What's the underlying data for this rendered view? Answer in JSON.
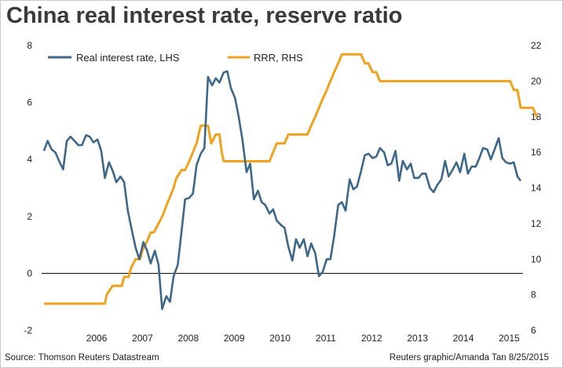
{
  "header": {
    "title": "China real interest rate, reserve ratio"
  },
  "footer": {
    "source": "Source: Thomson Reuters Datastream",
    "credit": "Reuters graphic/Amanda Tan 8/25/2015"
  },
  "colors": {
    "lhs_series": "#3d6889",
    "rhs_series": "#f0a21c",
    "zero_line": "#000000"
  },
  "chart_data": {
    "type": "line",
    "title": "China real interest rate, reserve ratio",
    "xlabel": "",
    "ylabel": "",
    "y_left": {
      "range": [
        -2,
        8
      ],
      "ticks": [
        "-2",
        "0",
        "2",
        "4",
        "6",
        "8"
      ]
    },
    "y_right": {
      "range": [
        6,
        22
      ],
      "ticks": [
        "6",
        "8",
        "10",
        "12",
        "14",
        "16",
        "18",
        "20",
        "22"
      ]
    },
    "x_range": [
      2005.0,
      2015.5
    ],
    "x_ticks": [
      {
        "label": "2006",
        "x": 2006.2
      },
      {
        "label": "2007",
        "x": 2007.2
      },
      {
        "label": "2008",
        "x": 2008.2
      },
      {
        "label": "2009",
        "x": 2009.2
      },
      {
        "label": "2010",
        "x": 2010.2
      },
      {
        "label": "2011",
        "x": 2011.2
      },
      {
        "label": "2012",
        "x": 2012.2
      },
      {
        "label": "2013",
        "x": 2013.2
      },
      {
        "label": "2014",
        "x": 2014.2
      },
      {
        "label": "2015",
        "x": 2015.2
      }
    ],
    "grid": false,
    "legend": "top",
    "series": [
      {
        "name": "Real interest rate, LHS",
        "axis": "left",
        "points": [
          [
            2005.05,
            4.3
          ],
          [
            2005.13,
            4.65
          ],
          [
            2005.22,
            4.35
          ],
          [
            2005.3,
            4.25
          ],
          [
            2005.38,
            3.95
          ],
          [
            2005.47,
            3.65
          ],
          [
            2005.55,
            4.65
          ],
          [
            2005.63,
            4.8
          ],
          [
            2005.72,
            4.65
          ],
          [
            2005.8,
            4.5
          ],
          [
            2005.88,
            4.5
          ],
          [
            2005.97,
            4.85
          ],
          [
            2006.05,
            4.8
          ],
          [
            2006.13,
            4.6
          ],
          [
            2006.22,
            4.7
          ],
          [
            2006.3,
            4.3
          ],
          [
            2006.38,
            3.35
          ],
          [
            2006.47,
            3.9
          ],
          [
            2006.55,
            3.6
          ],
          [
            2006.63,
            3.2
          ],
          [
            2006.72,
            3.4
          ],
          [
            2006.8,
            3.2
          ],
          [
            2006.88,
            2.2
          ],
          [
            2006.97,
            1.5
          ],
          [
            2007.05,
            0.9
          ],
          [
            2007.13,
            0.5
          ],
          [
            2007.22,
            1.1
          ],
          [
            2007.3,
            0.8
          ],
          [
            2007.38,
            0.35
          ],
          [
            2007.47,
            0.8
          ],
          [
            2007.55,
            0.3
          ],
          [
            2007.63,
            -1.25
          ],
          [
            2007.72,
            -0.8
          ],
          [
            2007.8,
            -1.0
          ],
          [
            2007.88,
            -0.1
          ],
          [
            2007.97,
            0.3
          ],
          [
            2008.05,
            1.45
          ],
          [
            2008.13,
            2.6
          ],
          [
            2008.22,
            2.65
          ],
          [
            2008.3,
            2.8
          ],
          [
            2008.38,
            3.8
          ],
          [
            2008.47,
            4.2
          ],
          [
            2008.55,
            4.4
          ],
          [
            2008.63,
            6.9
          ],
          [
            2008.72,
            6.6
          ],
          [
            2008.8,
            6.85
          ],
          [
            2008.88,
            6.7
          ],
          [
            2008.97,
            7.05
          ],
          [
            2009.05,
            7.1
          ],
          [
            2009.13,
            6.5
          ],
          [
            2009.22,
            6.15
          ],
          [
            2009.3,
            5.5
          ],
          [
            2009.38,
            4.7
          ],
          [
            2009.47,
            3.55
          ],
          [
            2009.55,
            3.85
          ],
          [
            2009.63,
            2.6
          ],
          [
            2009.72,
            2.9
          ],
          [
            2009.8,
            2.5
          ],
          [
            2009.88,
            2.4
          ],
          [
            2009.97,
            2.1
          ],
          [
            2010.05,
            2.25
          ],
          [
            2010.13,
            1.85
          ],
          [
            2010.22,
            1.7
          ],
          [
            2010.3,
            1.6
          ],
          [
            2010.38,
            0.95
          ],
          [
            2010.47,
            0.45
          ],
          [
            2010.55,
            1.2
          ],
          [
            2010.63,
            0.9
          ],
          [
            2010.72,
            1.2
          ],
          [
            2010.8,
            0.6
          ],
          [
            2010.88,
            1.05
          ],
          [
            2010.97,
            0.7
          ],
          [
            2011.05,
            -0.1
          ],
          [
            2011.13,
            0.05
          ],
          [
            2011.22,
            0.5
          ],
          [
            2011.3,
            0.5
          ],
          [
            2011.38,
            1.3
          ],
          [
            2011.47,
            2.4
          ],
          [
            2011.55,
            2.5
          ],
          [
            2011.63,
            2.2
          ],
          [
            2011.72,
            3.3
          ],
          [
            2011.8,
            2.95
          ],
          [
            2011.88,
            3.05
          ],
          [
            2011.97,
            3.6
          ],
          [
            2012.05,
            4.15
          ],
          [
            2012.13,
            4.2
          ],
          [
            2012.22,
            4.05
          ],
          [
            2012.3,
            4.1
          ],
          [
            2012.38,
            4.4
          ],
          [
            2012.47,
            4.25
          ],
          [
            2012.55,
            3.8
          ],
          [
            2012.63,
            3.85
          ],
          [
            2012.72,
            4.3
          ],
          [
            2012.8,
            3.25
          ],
          [
            2012.88,
            3.95
          ],
          [
            2012.97,
            3.65
          ],
          [
            2013.05,
            3.85
          ],
          [
            2013.13,
            3.35
          ],
          [
            2013.22,
            3.35
          ],
          [
            2013.3,
            3.5
          ],
          [
            2013.38,
            3.5
          ],
          [
            2013.47,
            3.0
          ],
          [
            2013.55,
            2.85
          ],
          [
            2013.63,
            3.1
          ],
          [
            2013.72,
            3.3
          ],
          [
            2013.8,
            3.95
          ],
          [
            2013.88,
            3.4
          ],
          [
            2013.97,
            3.65
          ],
          [
            2014.05,
            3.9
          ],
          [
            2014.13,
            3.55
          ],
          [
            2014.22,
            4.2
          ],
          [
            2014.3,
            3.5
          ],
          [
            2014.38,
            3.75
          ],
          [
            2014.47,
            3.75
          ],
          [
            2014.55,
            4.05
          ],
          [
            2014.63,
            4.4
          ],
          [
            2014.72,
            4.35
          ],
          [
            2014.8,
            4.0
          ],
          [
            2014.88,
            4.35
          ],
          [
            2014.97,
            4.75
          ],
          [
            2015.05,
            4.05
          ],
          [
            2015.13,
            3.9
          ],
          [
            2015.22,
            3.85
          ],
          [
            2015.3,
            3.9
          ],
          [
            2015.38,
            3.4
          ],
          [
            2015.45,
            3.25
          ]
        ]
      },
      {
        "name": "RRR, RHS",
        "axis": "right",
        "points": [
          [
            2005.05,
            7.5
          ],
          [
            2006.38,
            7.5
          ],
          [
            2006.42,
            8.0
          ],
          [
            2006.55,
            8.5
          ],
          [
            2006.75,
            8.5
          ],
          [
            2006.8,
            9.0
          ],
          [
            2006.9,
            9.0
          ],
          [
            2006.95,
            9.5
          ],
          [
            2007.05,
            10.0
          ],
          [
            2007.15,
            10.0
          ],
          [
            2007.2,
            10.5
          ],
          [
            2007.3,
            11.0
          ],
          [
            2007.38,
            11.5
          ],
          [
            2007.45,
            11.5
          ],
          [
            2007.55,
            12.0
          ],
          [
            2007.65,
            12.5
          ],
          [
            2007.72,
            13.0
          ],
          [
            2007.8,
            13.5
          ],
          [
            2007.88,
            14.0
          ],
          [
            2007.93,
            14.5
          ],
          [
            2008.05,
            15.0
          ],
          [
            2008.13,
            15.0
          ],
          [
            2008.22,
            15.5
          ],
          [
            2008.3,
            16.0
          ],
          [
            2008.38,
            16.5
          ],
          [
            2008.47,
            17.5
          ],
          [
            2008.63,
            17.5
          ],
          [
            2008.7,
            16.5
          ],
          [
            2008.8,
            17.0
          ],
          [
            2008.88,
            17.0
          ],
          [
            2008.93,
            16.0
          ],
          [
            2008.97,
            15.5
          ],
          [
            2009.97,
            15.5
          ],
          [
            2010.05,
            16.0
          ],
          [
            2010.13,
            16.5
          ],
          [
            2010.3,
            16.5
          ],
          [
            2010.38,
            17.0
          ],
          [
            2010.8,
            17.0
          ],
          [
            2010.88,
            17.5
          ],
          [
            2010.97,
            18.0
          ],
          [
            2011.05,
            18.5
          ],
          [
            2011.13,
            19.0
          ],
          [
            2011.22,
            19.5
          ],
          [
            2011.3,
            20.0
          ],
          [
            2011.38,
            20.5
          ],
          [
            2011.47,
            21.0
          ],
          [
            2011.55,
            21.5
          ],
          [
            2011.97,
            21.5
          ],
          [
            2012.05,
            21.0
          ],
          [
            2012.13,
            21.0
          ],
          [
            2012.22,
            20.5
          ],
          [
            2012.3,
            20.5
          ],
          [
            2012.38,
            20.0
          ],
          [
            2015.22,
            20.0
          ],
          [
            2015.3,
            19.5
          ],
          [
            2015.38,
            19.5
          ],
          [
            2015.45,
            18.5
          ],
          [
            2015.72,
            18.5
          ],
          [
            2015.8,
            18.0
          ]
        ]
      }
    ]
  }
}
